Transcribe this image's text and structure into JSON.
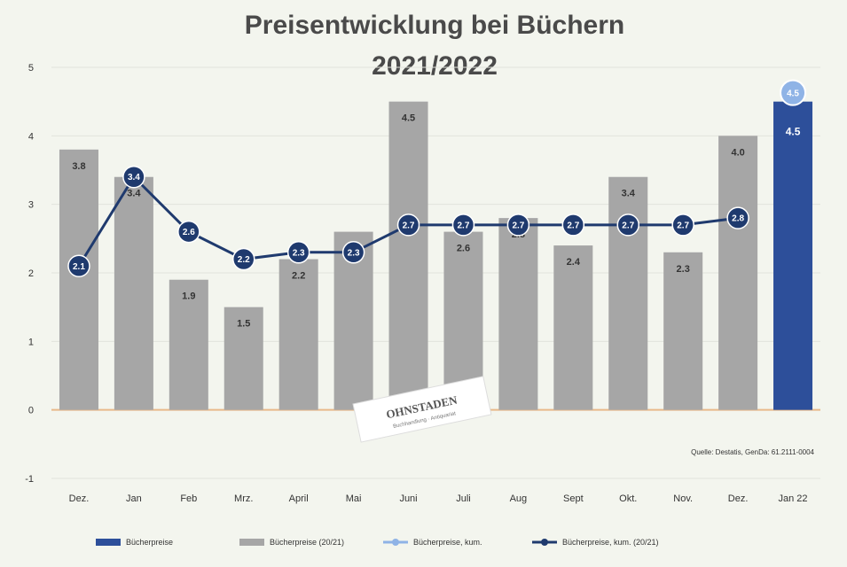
{
  "chart_data": {
    "type": "bar",
    "title_line1": "Preisentwicklung bei Büchern",
    "title_line2": "2021/2022",
    "ylim": [
      -1,
      5
    ],
    "yticks": [
      "-1",
      "0",
      "1",
      "2",
      "3",
      "4",
      "5"
    ],
    "categories": [
      "Dez.",
      "Jan",
      "Feb",
      "Mrz.",
      "April",
      "Mai",
      "Juni",
      "Juli",
      "Aug",
      "Sept",
      "Okt.",
      "Nov.",
      "Dez.",
      "Jan 22"
    ],
    "series": [
      {
        "name": "Bücherpreise",
        "kind": "bar",
        "color": "#2d4f9a",
        "values": [
          null,
          null,
          null,
          null,
          null,
          null,
          null,
          null,
          null,
          null,
          null,
          null,
          null,
          4.5
        ]
      },
      {
        "name": "Bücherpreise (20/21)",
        "kind": "bar",
        "color": "#a6a6a6",
        "values": [
          3.8,
          3.4,
          1.9,
          1.5,
          2.2,
          2.6,
          4.5,
          2.6,
          2.8,
          2.4,
          3.4,
          2.3,
          4.0,
          null
        ]
      },
      {
        "name": "Bücherpreise, kum.",
        "kind": "marker",
        "color": "#8fb3e6",
        "values": [
          null,
          null,
          null,
          null,
          null,
          null,
          null,
          null,
          null,
          null,
          null,
          null,
          null,
          4.5
        ]
      },
      {
        "name": "Bücherpreise, kum. (20/21)",
        "kind": "line",
        "color": "#1f3a6e",
        "values": [
          2.1,
          3.4,
          2.6,
          2.2,
          2.3,
          2.3,
          2.7,
          2.7,
          2.7,
          2.7,
          2.7,
          2.7,
          2.8,
          null
        ]
      }
    ],
    "bar_labels": [
      "3.8",
      "3.4",
      "1.9",
      "1.5",
      "2.2",
      "2.6",
      "4.5",
      "2.6",
      "2.8",
      "2.4",
      "3.4",
      "2.3",
      "4.0",
      "4.5"
    ],
    "line_labels": [
      "2.1",
      "3.4",
      "2.6",
      "2.2",
      "2.3",
      "2.3",
      "2.7",
      "2.7",
      "2.7",
      "2.7",
      "2.7",
      "2.7",
      "2.8",
      "4.5"
    ],
    "source": "Quelle: Destatis, GenDa: 61.2111-0004",
    "legend_position": "bottom",
    "grid": true,
    "zero_line_color": "#e8b98a"
  },
  "watermark": {
    "name": "OHNSTADEN",
    "tagline": "Buchhandlung · Antiquariat"
  }
}
